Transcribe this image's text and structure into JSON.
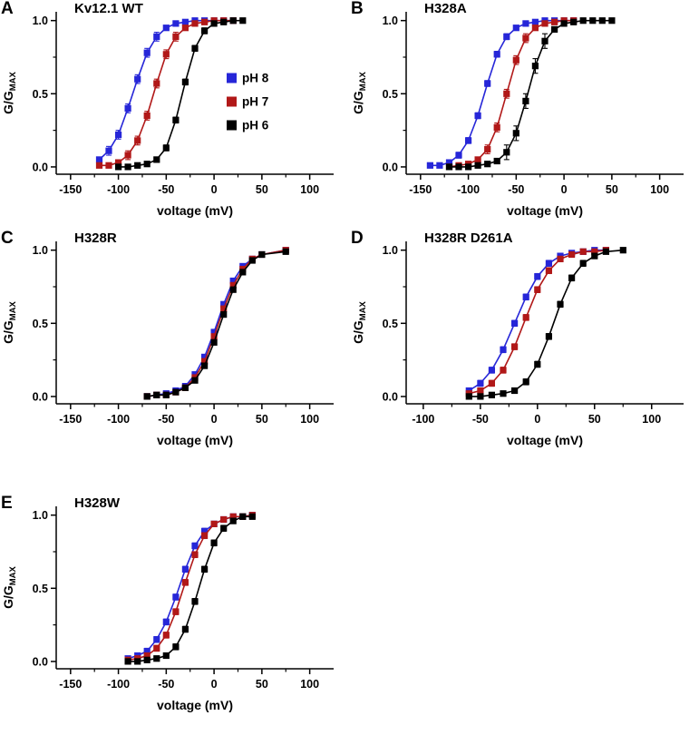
{
  "figure": {
    "background": "#ffffff",
    "axis_color": "#000000",
    "legend": {
      "items": [
        {
          "key": "ph8",
          "label": "pH 8",
          "color": "#2626d8"
        },
        {
          "key": "ph7",
          "label": "pH 7",
          "color": "#b11818"
        },
        {
          "key": "ph6",
          "label": "pH 6",
          "color": "#000000"
        }
      ]
    }
  },
  "chart_data": [
    {
      "type": "line",
      "panel_label": "A",
      "title": "Kv12.1 WT",
      "xlabel": "voltage (mV)",
      "ylabel": "G/G",
      "ylabel_sub": "MAX",
      "xlim": [
        -165,
        125
      ],
      "ylim": [
        -0.05,
        1.06
      ],
      "xticks": [
        -150,
        -100,
        -50,
        0,
        50,
        100
      ],
      "xtick_labels": [
        "-150",
        "-100",
        "-50",
        "0",
        "50",
        "100"
      ],
      "yticks": [
        0,
        0.5,
        1
      ],
      "ytick_labels": [
        "0.0",
        "0.5",
        "1.0"
      ],
      "show_legend": true,
      "series": [
        {
          "key": "ph8",
          "name": "pH 8",
          "color": "#2626d8",
          "yerr": 0.03,
          "x": [
            -120,
            -110,
            -100,
            -90,
            -80,
            -70,
            -60,
            -50,
            -40,
            -30,
            -20,
            -10,
            0,
            10,
            20
          ],
          "y": [
            0.05,
            0.11,
            0.22,
            0.4,
            0.6,
            0.78,
            0.89,
            0.95,
            0.98,
            0.99,
            1.0,
            1.0,
            1.0,
            1.0,
            1.0
          ]
        },
        {
          "key": "ph7",
          "name": "pH 7",
          "color": "#b11818",
          "yerr": 0.03,
          "x": [
            -120,
            -110,
            -100,
            -90,
            -80,
            -70,
            -60,
            -50,
            -40,
            -30,
            -20,
            -10,
            0,
            10,
            20
          ],
          "y": [
            0.01,
            0.01,
            0.03,
            0.08,
            0.18,
            0.35,
            0.57,
            0.77,
            0.89,
            0.95,
            0.98,
            0.99,
            1.0,
            1.0,
            1.0
          ]
        },
        {
          "key": "ph6",
          "name": "pH 6",
          "color": "#000000",
          "yerr": 0.02,
          "x": [
            -100,
            -90,
            -80,
            -70,
            -60,
            -50,
            -40,
            -30,
            -20,
            -10,
            0,
            10,
            20,
            30
          ],
          "y": [
            0.0,
            0.0,
            0.01,
            0.02,
            0.05,
            0.13,
            0.32,
            0.58,
            0.81,
            0.93,
            0.98,
            0.99,
            1.0,
            1.0
          ]
        }
      ]
    },
    {
      "type": "line",
      "panel_label": "B",
      "title": "H328A",
      "xlabel": "voltage (mV)",
      "ylabel": "G/G",
      "ylabel_sub": "MAX",
      "xlim": [
        -165,
        125
      ],
      "ylim": [
        -0.05,
        1.06
      ],
      "xticks": [
        -150,
        -100,
        -50,
        0,
        50,
        100
      ],
      "xtick_labels": [
        "-150",
        "-100",
        "-50",
        "0",
        "50",
        "100"
      ],
      "yticks": [
        0,
        0.5,
        1
      ],
      "ytick_labels": [
        "0.0",
        "0.5",
        "1.0"
      ],
      "show_legend": false,
      "series": [
        {
          "key": "ph8",
          "name": "pH 8",
          "color": "#2626d8",
          "yerr": 0.02,
          "x": [
            -140,
            -130,
            -120,
            -110,
            -100,
            -90,
            -80,
            -70,
            -60,
            -50,
            -40,
            -30,
            -20,
            -10,
            0,
            10
          ],
          "y": [
            0.01,
            0.01,
            0.03,
            0.08,
            0.18,
            0.35,
            0.57,
            0.77,
            0.89,
            0.95,
            0.98,
            0.99,
            1.0,
            1.0,
            1.0,
            1.0
          ]
        },
        {
          "key": "ph7",
          "name": "pH 7",
          "color": "#b11818",
          "yerr": 0.03,
          "x": [
            -120,
            -110,
            -100,
            -90,
            -80,
            -70,
            -60,
            -50,
            -40,
            -30,
            -20,
            -10,
            0,
            10
          ],
          "y": [
            0.0,
            0.01,
            0.02,
            0.05,
            0.12,
            0.27,
            0.5,
            0.73,
            0.88,
            0.95,
            0.98,
            0.99,
            1.0,
            1.0
          ]
        },
        {
          "key": "ph6",
          "name": "pH 6",
          "color": "#000000",
          "yerr": 0.05,
          "x": [
            -120,
            -110,
            -100,
            -90,
            -80,
            -70,
            -60,
            -50,
            -40,
            -30,
            -20,
            -10,
            0,
            10,
            20,
            30,
            40,
            50
          ],
          "y": [
            0.0,
            0.0,
            0.0,
            0.01,
            0.02,
            0.04,
            0.1,
            0.23,
            0.45,
            0.69,
            0.86,
            0.94,
            0.98,
            0.99,
            1.0,
            1.0,
            1.0,
            1.0
          ]
        }
      ]
    },
    {
      "type": "line",
      "panel_label": "C",
      "title": "H328R",
      "xlabel": "voltage (mV)",
      "ylabel": "G/G",
      "ylabel_sub": "MAX",
      "xlim": [
        -165,
        125
      ],
      "ylim": [
        -0.05,
        1.06
      ],
      "xticks": [
        -150,
        -100,
        -50,
        0,
        50,
        100
      ],
      "xtick_labels": [
        "-150",
        "-100",
        "-50",
        "0",
        "50",
        "100"
      ],
      "yticks": [
        0,
        0.5,
        1
      ],
      "ytick_labels": [
        "0.0",
        "0.5",
        "1.0"
      ],
      "show_legend": false,
      "series": [
        {
          "key": "ph8",
          "name": "pH 8",
          "color": "#2626d8",
          "yerr": 0.015,
          "x": [
            -70,
            -60,
            -50,
            -40,
            -30,
            -20,
            -10,
            0,
            10,
            20,
            30,
            40,
            50,
            75
          ],
          "y": [
            0.0,
            0.01,
            0.02,
            0.04,
            0.07,
            0.15,
            0.27,
            0.44,
            0.63,
            0.79,
            0.89,
            0.94,
            0.97,
            1.0
          ]
        },
        {
          "key": "ph7",
          "name": "pH 7",
          "color": "#b11818",
          "yerr": 0.015,
          "x": [
            -70,
            -60,
            -50,
            -40,
            -30,
            -20,
            -10,
            0,
            10,
            20,
            30,
            40,
            50,
            75
          ],
          "y": [
            0.0,
            0.01,
            0.01,
            0.03,
            0.06,
            0.13,
            0.24,
            0.41,
            0.6,
            0.76,
            0.87,
            0.94,
            0.97,
            1.0
          ]
        },
        {
          "key": "ph6",
          "name": "pH 6",
          "color": "#000000",
          "yerr": 0.015,
          "x": [
            -70,
            -60,
            -50,
            -40,
            -30,
            -20,
            -10,
            0,
            10,
            20,
            30,
            40,
            50,
            75
          ],
          "y": [
            0.0,
            0.01,
            0.01,
            0.03,
            0.06,
            0.11,
            0.21,
            0.37,
            0.56,
            0.73,
            0.85,
            0.93,
            0.97,
            0.99
          ]
        }
      ]
    },
    {
      "type": "line",
      "panel_label": "D",
      "title": "H328R D261A",
      "xlabel": "voltage (mV)",
      "ylabel": "G/G",
      "ylabel_sub": "MAX",
      "xlim": [
        -115,
        128
      ],
      "ylim": [
        -0.05,
        1.06
      ],
      "xticks": [
        -100,
        -50,
        0,
        50,
        100
      ],
      "xtick_labels": [
        "-100",
        "-50",
        "0",
        "50",
        "100"
      ],
      "yticks": [
        0,
        0.5,
        1
      ],
      "ytick_labels": [
        "0.0",
        "0.5",
        "1.0"
      ],
      "show_legend": false,
      "series": [
        {
          "key": "ph8",
          "name": "pH 8",
          "color": "#2626d8",
          "yerr": 0.02,
          "x": [
            -60,
            -50,
            -40,
            -30,
            -20,
            -10,
            0,
            10,
            20,
            30,
            40,
            50,
            60
          ],
          "y": [
            0.04,
            0.09,
            0.18,
            0.32,
            0.5,
            0.68,
            0.82,
            0.91,
            0.96,
            0.98,
            0.99,
            1.0,
            1.0
          ]
        },
        {
          "key": "ph7",
          "name": "pH 7",
          "color": "#b11818",
          "yerr": 0.02,
          "x": [
            -60,
            -50,
            -40,
            -30,
            -20,
            -10,
            0,
            10,
            20,
            30,
            40,
            50,
            60
          ],
          "y": [
            0.02,
            0.04,
            0.09,
            0.18,
            0.34,
            0.54,
            0.73,
            0.86,
            0.94,
            0.97,
            0.99,
            0.99,
            1.0
          ]
        },
        {
          "key": "ph6",
          "name": "pH 6",
          "color": "#000000",
          "yerr": 0.02,
          "x": [
            -60,
            -50,
            -40,
            -30,
            -20,
            -10,
            0,
            10,
            20,
            30,
            40,
            50,
            60,
            75
          ],
          "y": [
            0.0,
            0.0,
            0.01,
            0.02,
            0.04,
            0.1,
            0.22,
            0.41,
            0.63,
            0.81,
            0.91,
            0.96,
            0.99,
            1.0
          ]
        }
      ]
    },
    {
      "type": "line",
      "panel_label": "E",
      "title": "H328W",
      "xlabel": "voltage (mV)",
      "ylabel": "G/G",
      "ylabel_sub": "MAX",
      "xlim": [
        -165,
        125
      ],
      "ylim": [
        -0.05,
        1.06
      ],
      "xticks": [
        -150,
        -100,
        -50,
        0,
        50,
        100
      ],
      "xtick_labels": [
        "-150",
        "-100",
        "-50",
        "0",
        "50",
        "100"
      ],
      "yticks": [
        0,
        0.5,
        1
      ],
      "ytick_labels": [
        "0.0",
        "0.5",
        "1.0"
      ],
      "show_legend": false,
      "series": [
        {
          "key": "ph8",
          "name": "pH 8",
          "color": "#2626d8",
          "yerr": 0.02,
          "x": [
            -90,
            -80,
            -70,
            -60,
            -50,
            -40,
            -30,
            -20,
            -10,
            0,
            10,
            20,
            30,
            40
          ],
          "y": [
            0.02,
            0.04,
            0.07,
            0.15,
            0.27,
            0.44,
            0.63,
            0.79,
            0.89,
            0.94,
            0.97,
            0.99,
            0.99,
            1.0
          ]
        },
        {
          "key": "ph7",
          "name": "pH 7",
          "color": "#b11818",
          "yerr": 0.02,
          "x": [
            -90,
            -80,
            -70,
            -60,
            -50,
            -40,
            -30,
            -20,
            -10,
            0,
            10,
            20,
            30,
            40
          ],
          "y": [
            0.01,
            0.02,
            0.04,
            0.09,
            0.18,
            0.34,
            0.54,
            0.73,
            0.86,
            0.94,
            0.97,
            0.99,
            0.99,
            1.0
          ]
        },
        {
          "key": "ph6",
          "name": "pH 6",
          "color": "#000000",
          "yerr": 0.02,
          "x": [
            -90,
            -80,
            -70,
            -60,
            -50,
            -40,
            -30,
            -20,
            -10,
            0,
            10,
            20,
            30,
            40
          ],
          "y": [
            0.0,
            0.0,
            0.01,
            0.02,
            0.04,
            0.1,
            0.22,
            0.41,
            0.63,
            0.81,
            0.91,
            0.96,
            0.99,
            0.99
          ]
        }
      ]
    }
  ]
}
